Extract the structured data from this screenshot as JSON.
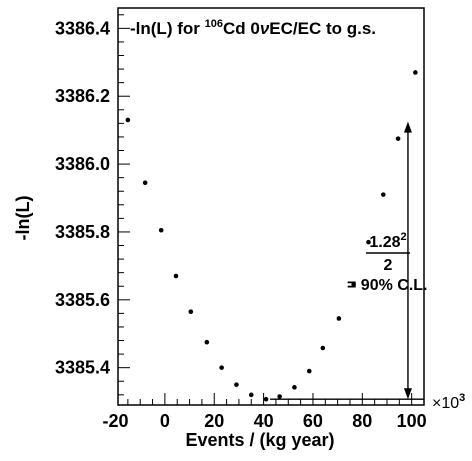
{
  "chart_data": {
    "type": "scatter",
    "title": {
      "prefix": "-ln(L) for ",
      "isotope_mass": "106",
      "element": "Cd",
      "process_a": " 0",
      "nu": "ν",
      "process_b": "EC/EC to g.s."
    },
    "xlabel": "Events / (kg year)",
    "ylabel": "-ln(L)",
    "x_multiplier_label": "×10",
    "x_multiplier_exp": "3",
    "xlim": [
      -19,
      105
    ],
    "ylim": [
      3385.29,
      3386.46
    ],
    "x_ticks": [
      "-20",
      "0",
      "20",
      "40",
      "60",
      "80",
      "100"
    ],
    "y_ticks": [
      "3385.4",
      "3385.6",
      "3385.8",
      "3386.0",
      "3386.2",
      "3386.4"
    ],
    "points": [
      {
        "x": -15,
        "y": 3386.13
      },
      {
        "x": -8,
        "y": 3385.945
      },
      {
        "x": -1.5,
        "y": 3385.805
      },
      {
        "x": 4.5,
        "y": 3385.67
      },
      {
        "x": 10.5,
        "y": 3385.565
      },
      {
        "x": 17,
        "y": 3385.475
      },
      {
        "x": 23,
        "y": 3385.4
      },
      {
        "x": 29,
        "y": 3385.35
      },
      {
        "x": 35,
        "y": 3385.32
      },
      {
        "x": 41,
        "y": 3385.307
      },
      {
        "x": 46.5,
        "y": 3385.315
      },
      {
        "x": 52.5,
        "y": 3385.342
      },
      {
        "x": 58.5,
        "y": 3385.39
      },
      {
        "x": 64,
        "y": 3385.458
      },
      {
        "x": 70.5,
        "y": 3385.545
      },
      {
        "x": 76.5,
        "y": 3385.645
      },
      {
        "x": 82.5,
        "y": 3385.77
      },
      {
        "x": 88.5,
        "y": 3385.91
      },
      {
        "x": 94.5,
        "y": 3386.075
      },
      {
        "x": 101.5,
        "y": 3386.27
      }
    ],
    "annotation": {
      "numerator": "1.28",
      "numerator_exp": "2",
      "denominator": "2",
      "equals_text": "= 90% C.L.",
      "arrow_x": 98.5,
      "arrow_y_top": 3386.125,
      "arrow_y_bottom": 3385.307
    }
  }
}
